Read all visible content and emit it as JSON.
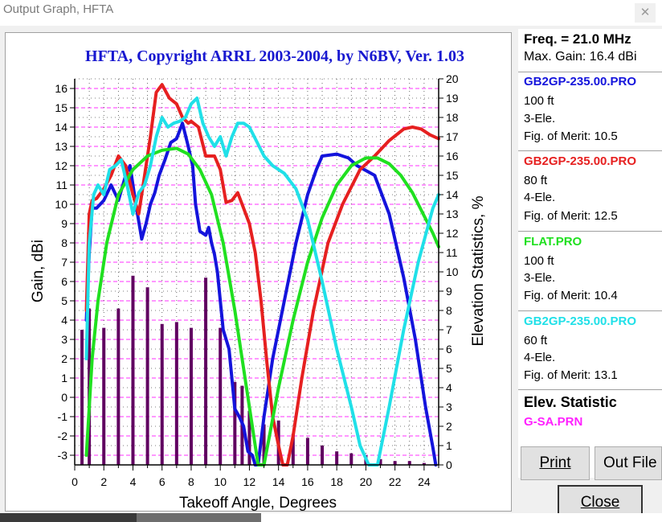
{
  "window": {
    "title": "Output Graph, HFTA",
    "close_glyph": "✕"
  },
  "chart_data": {
    "type": "line",
    "title": "HFTA, Copyright ARRL 2003-2004, by N6BV, Ver. 1.03",
    "xlabel": "Takeoff Angle, Degrees",
    "ylabel": "Gain, dBi",
    "y2label": "Elevation Statistics, %",
    "xlim": [
      0,
      25
    ],
    "ylim": [
      -3.5,
      16.5
    ],
    "y2lim": [
      0,
      20
    ],
    "xticks": [
      "0",
      "2",
      "4",
      "6",
      "8",
      "10",
      "12",
      "14",
      "16",
      "18",
      "20",
      "22",
      "24"
    ],
    "yticks": [
      "-3",
      "-2",
      "-1",
      "0",
      "1",
      "2",
      "3",
      "4",
      "5",
      "6",
      "7",
      "8",
      "9",
      "10",
      "11",
      "12",
      "13",
      "14",
      "15",
      "16"
    ],
    "y2ticks": [
      "0",
      "1",
      "2",
      "3",
      "4",
      "5",
      "6",
      "7",
      "8",
      "9",
      "10",
      "11",
      "12",
      "13",
      "14",
      "15",
      "16",
      "17",
      "18",
      "19",
      "20"
    ],
    "grid": true,
    "series": [
      {
        "name": "GB2GP-235.00.PRO",
        "color": "#1414dc",
        "x": [
          0.8,
          1.0,
          1.2,
          1.5,
          2.0,
          2.5,
          3.0,
          3.5,
          3.8,
          4.2,
          4.6,
          4.9,
          5.2,
          5.5,
          5.8,
          6.2,
          6.6,
          7.0,
          7.4,
          7.8,
          8.1,
          8.3,
          8.6,
          9.0,
          9.2,
          9.4,
          9.6,
          9.8,
          10.2,
          10.6,
          11.0,
          11.3,
          11.6,
          11.9,
          12.2,
          12.4,
          12.6,
          13.0,
          13.6,
          14.4,
          15.2,
          16.0,
          16.6,
          17.0,
          18.0,
          18.8,
          19.4,
          20.6,
          21.6,
          22.6,
          23.4,
          24.1,
          24.6,
          24.8
        ],
        "y": [
          4,
          7.5,
          9.8,
          9.8,
          10.2,
          11,
          10.2,
          11.5,
          12,
          10,
          8.2,
          9,
          10,
          10.6,
          11.5,
          12.3,
          13.2,
          13.4,
          14.2,
          13,
          12,
          10,
          8.6,
          8.4,
          8.8,
          8,
          7.4,
          6.5,
          3.5,
          2.5,
          -0.6,
          -1,
          -1.5,
          -2.8,
          -3,
          -3.5,
          -3.5,
          -1,
          2,
          5,
          8,
          10.5,
          11.8,
          12.5,
          12.6,
          12.4,
          12,
          11.5,
          9.5,
          6.2,
          3,
          -0.5,
          -2.6,
          -3.5
        ]
      },
      {
        "name": "GB2GP-235.00.PRO",
        "color": "#e62020",
        "x": [
          0.8,
          1.0,
          1.2,
          1.5,
          2.0,
          2.5,
          3.0,
          3.5,
          4.0,
          4.4,
          4.8,
          5.2,
          5.6,
          6.0,
          6.5,
          7.0,
          7.4,
          7.8,
          8.0,
          8.5,
          9.0,
          9.6,
          10.0,
          10.4,
          10.8,
          11.2,
          11.6,
          12.0,
          12.4,
          12.8,
          13.2,
          13.6,
          14.0,
          14.3,
          14.6,
          15.0,
          15.6,
          16.4,
          17.4,
          18.4,
          19.6,
          20.6,
          21.6,
          22.6,
          23.2,
          23.8,
          24.4,
          25.0
        ],
        "y": [
          4.5,
          9.5,
          10.2,
          10.3,
          10.8,
          11.5,
          12.5,
          12,
          10.5,
          9.5,
          11.5,
          13.5,
          15.8,
          16.2,
          15.5,
          15.2,
          14.5,
          14.2,
          14.3,
          14,
          12.5,
          12.5,
          11.8,
          10.1,
          10.2,
          10.6,
          9.8,
          9,
          7.5,
          5,
          1.8,
          -1,
          -2.5,
          -3.5,
          -3.5,
          -2,
          1,
          4.5,
          8,
          10,
          11.8,
          12.5,
          13.3,
          13.9,
          14,
          13.9,
          13.6,
          13.4
        ]
      },
      {
        "name": "FLAT.PRO",
        "color": "#20e020",
        "x": [
          0.8,
          1.2,
          1.6,
          2.2,
          3.0,
          4.0,
          5.0,
          6.0,
          7.0,
          7.8,
          8.6,
          9.4,
          10.2,
          11.0,
          11.8,
          12.6,
          13.0,
          14.0,
          15.0,
          16.0,
          17.0,
          18.0,
          19.0,
          20.0,
          20.8,
          21.6,
          22.4,
          23.2,
          24.0,
          24.6,
          25.0
        ],
        "y": [
          -3,
          2,
          5,
          8,
          10.5,
          11.8,
          12.5,
          12.8,
          12.9,
          12.6,
          11.8,
          10.5,
          8,
          4.5,
          0.5,
          -3.5,
          -3.5,
          0.5,
          4,
          7,
          9.3,
          11,
          12,
          12.4,
          12.4,
          12.1,
          11.5,
          10.6,
          9.4,
          8.5,
          7.8
        ]
      },
      {
        "name": "GB2GP-235.00.PRO",
        "color": "#20e0e8",
        "x": [
          0.8,
          1.0,
          1.3,
          1.6,
          2.0,
          2.4,
          2.8,
          3.2,
          3.6,
          4.0,
          4.4,
          4.8,
          5.2,
          5.6,
          6.0,
          6.4,
          6.8,
          7.2,
          7.6,
          8.0,
          8.4,
          8.8,
          9.2,
          9.6,
          10.0,
          10.4,
          10.8,
          11.2,
          11.6,
          12.0,
          12.4,
          13.0,
          13.6,
          14.4,
          15.2,
          16.0,
          17.0,
          18.0,
          19.0,
          19.6,
          20.2,
          20.8,
          21.6,
          22.6,
          23.6,
          24.6,
          25.0
        ],
        "y": [
          2,
          8,
          10.5,
          11,
          10.5,
          11.8,
          12,
          12.3,
          11,
          9.5,
          10.6,
          11,
          12,
          13.5,
          14.5,
          14,
          14.2,
          14.3,
          14.5,
          15.2,
          15.5,
          14.2,
          13.5,
          13,
          13.5,
          12.5,
          13.5,
          14.2,
          14.2,
          14,
          13.4,
          12.5,
          12,
          11.6,
          10.8,
          9.2,
          6,
          2.5,
          -0.5,
          -2.5,
          -3.5,
          -3.5,
          -0.5,
          3.5,
          7,
          9.8,
          10.5
        ]
      }
    ],
    "bars": {
      "name": "G-SA.PRN",
      "color": "#600060",
      "x": [
        0.5,
        1,
        2,
        3,
        4,
        5,
        6,
        7,
        8,
        9,
        10,
        11,
        11.5,
        12,
        13,
        14,
        15,
        16,
        17,
        18,
        19,
        20,
        21,
        22,
        23,
        24
      ],
      "values": [
        7,
        8.1,
        7.1,
        8.1,
        9.8,
        9.2,
        7.3,
        7.4,
        7.1,
        9.7,
        7.1,
        4.3,
        4.1,
        2.8,
        2.1,
        2.3,
        1.6,
        1.4,
        1.0,
        0.7,
        0.6,
        0.5,
        0.3,
        0.2,
        0.2,
        0.1
      ]
    }
  },
  "legend": {
    "freq": "Freq. = 21.0 MHz",
    "maxgain": "Max. Gain: 16.4 dBi",
    "entries": [
      {
        "file": "GB2GP-235.00.PRO",
        "color": "#1414dc",
        "height": "100 ft",
        "ele": "3-Ele.",
        "fom": "Fig. of Merit:  10.5"
      },
      {
        "file": "GB2GP-235.00.PRO",
        "color": "#e62020",
        "height": "80 ft",
        "ele": "4-Ele.",
        "fom": "Fig. of Merit:  12.5"
      },
      {
        "file": "FLAT.PRO",
        "color": "#20e020",
        "height": "100 ft",
        "ele": "3-Ele.",
        "fom": "Fig. of Merit:  10.4"
      },
      {
        "file": "GB2GP-235.00.PRO",
        "color": "#20e0e8",
        "height": "60 ft",
        "ele": "4-Ele.",
        "fom": "Fig. of Merit:  13.1"
      }
    ],
    "elev_title": "Elev. Statistic",
    "elev_file": "G-SA.PRN",
    "elev_color": "#ff20ff"
  },
  "buttons": {
    "print": "Print",
    "outfile": "Out File",
    "close": "Close"
  }
}
